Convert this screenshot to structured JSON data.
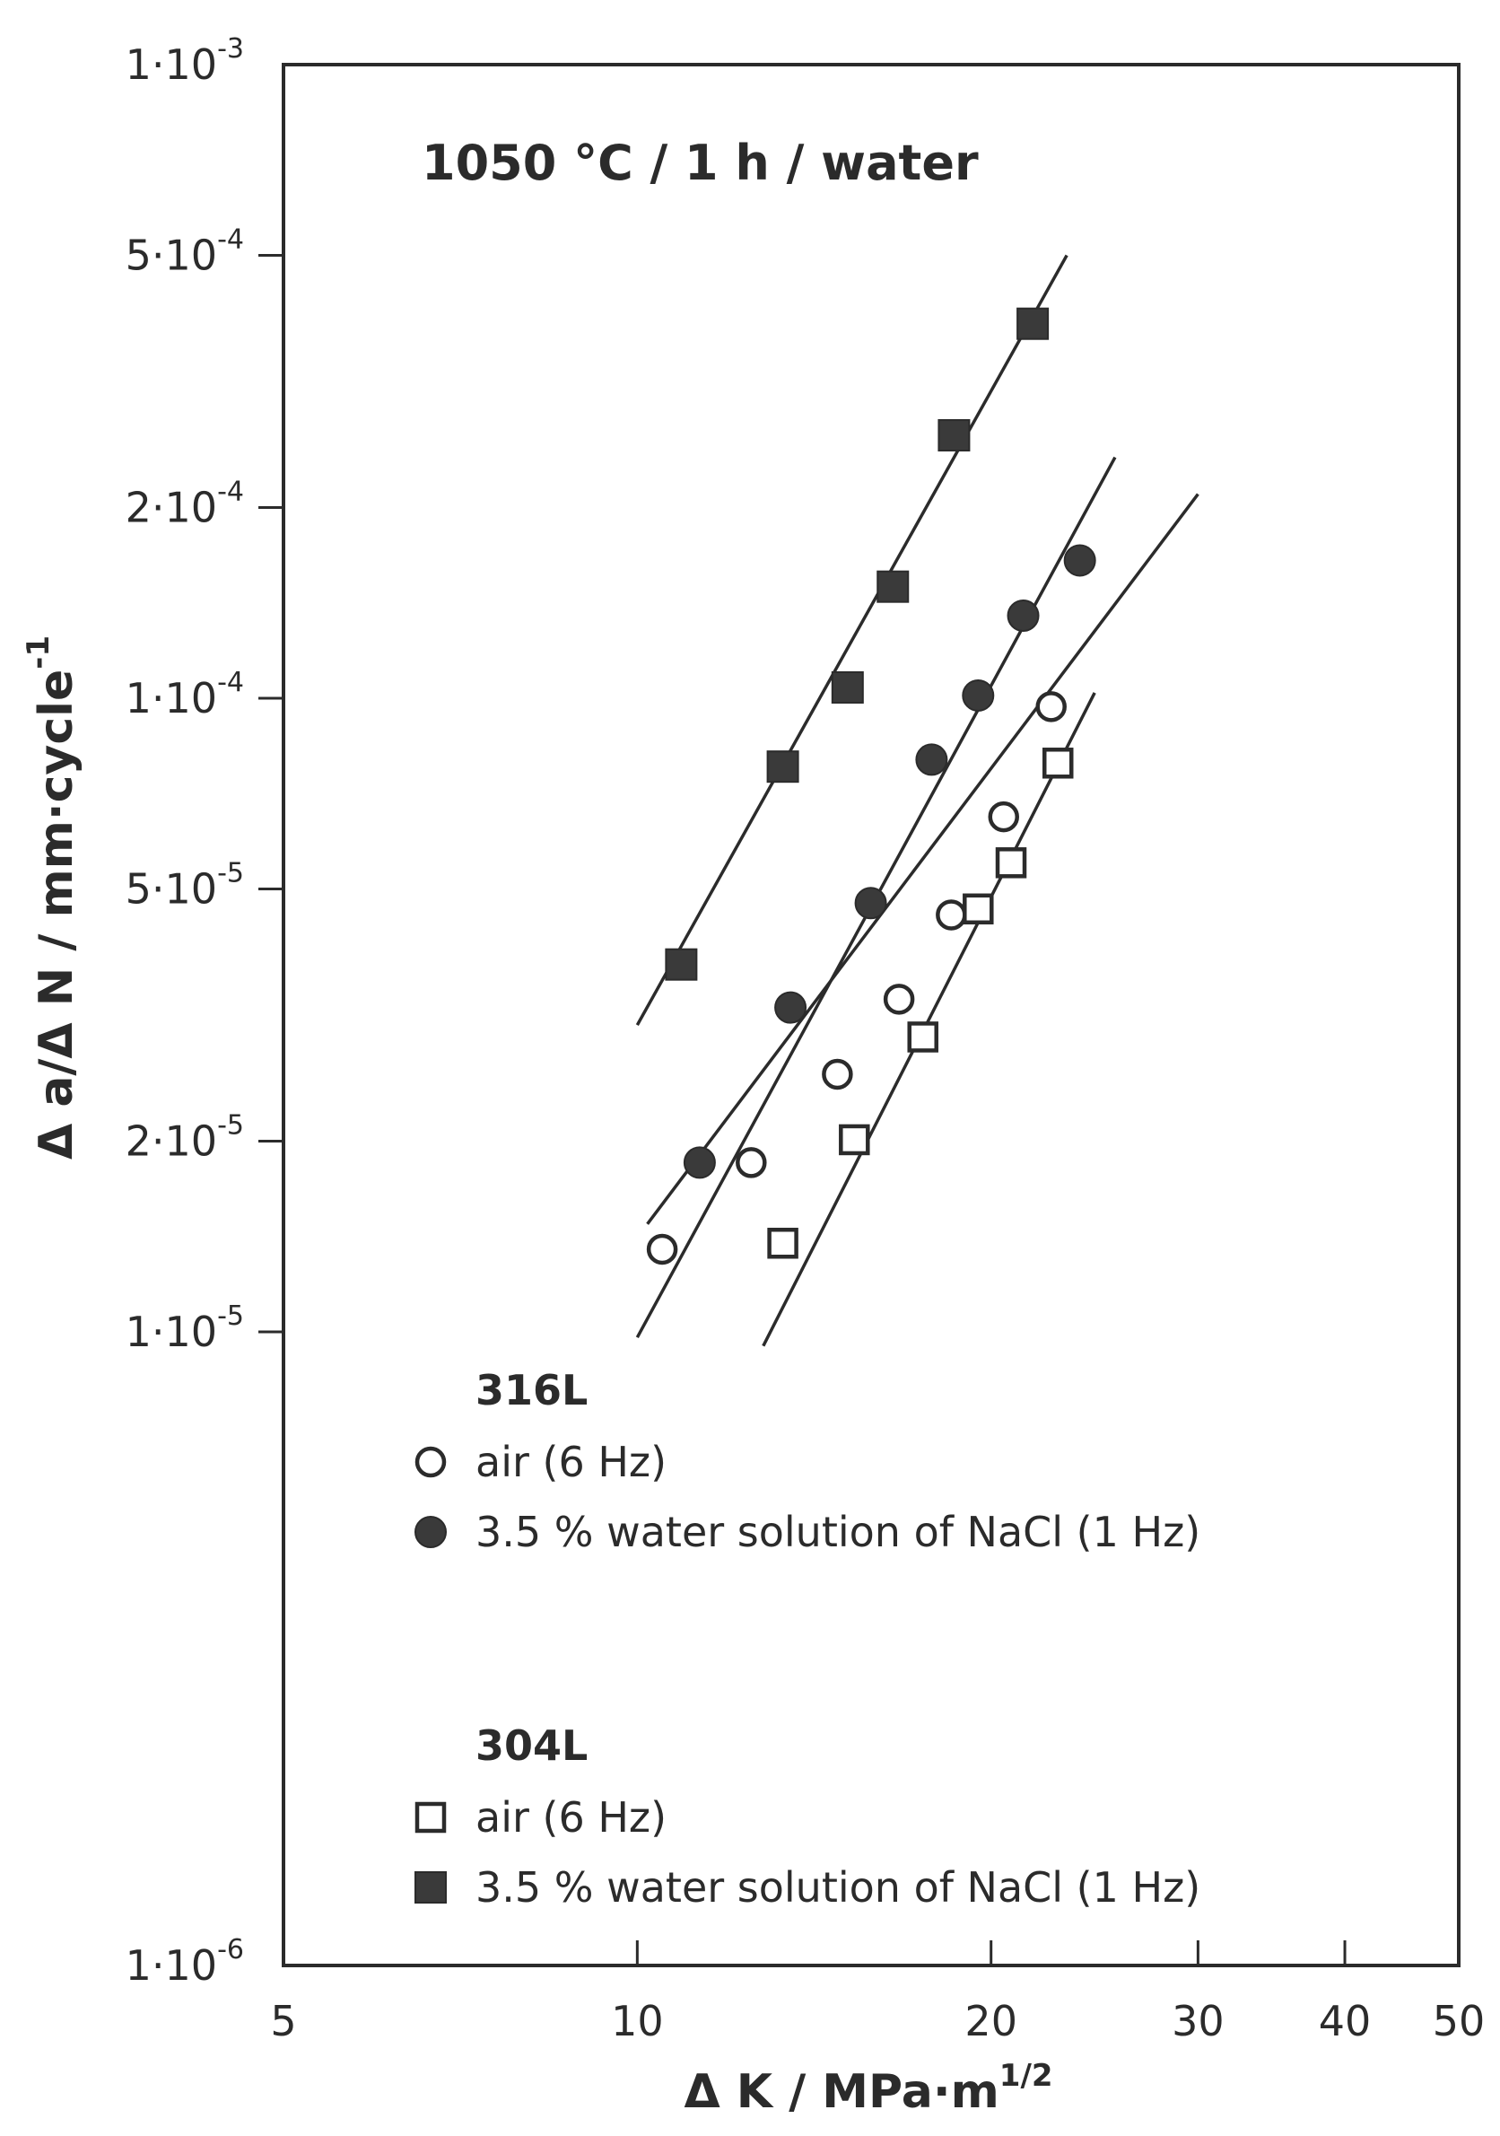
{
  "chart_data": {
    "type": "scatter",
    "title": "",
    "annotation": "1050 °C / 1 h / water",
    "xlabel": {
      "main": "Δ K / MPa·m",
      "exponent": "1/2"
    },
    "ylabel": {
      "main": "Δ a/Δ N / mm·cycle",
      "exponent": "-1"
    },
    "x_scale": "log",
    "y_scale": "log",
    "xlim": [
      5,
      50
    ],
    "ylim": [
      1e-06,
      0.001
    ],
    "grid": false,
    "x_ticks": [
      {
        "value": 5,
        "label": "5"
      },
      {
        "value": 10,
        "label": "10"
      },
      {
        "value": 20,
        "label": "20"
      },
      {
        "value": 30,
        "label": "30"
      },
      {
        "value": 40,
        "label": "40"
      },
      {
        "value": 50,
        "label": "50"
      }
    ],
    "y_ticks": [
      {
        "value": 1e-06,
        "mantissa": "1·10",
        "exponent": "-6"
      },
      {
        "value": 1e-05,
        "mantissa": "1·10",
        "exponent": "-5"
      },
      {
        "value": 2e-05,
        "mantissa": "2·10",
        "exponent": "-5"
      },
      {
        "value": 5e-05,
        "mantissa": "5·10",
        "exponent": "-5"
      },
      {
        "value": 0.0001,
        "mantissa": "1·10",
        "exponent": "-4"
      },
      {
        "value": 0.0002,
        "mantissa": "2·10",
        "exponent": "-4"
      },
      {
        "value": 0.0005,
        "mantissa": "5·10",
        "exponent": "-4"
      },
      {
        "value": 0.001,
        "mantissa": "1·10",
        "exponent": "-3"
      }
    ],
    "legend": {
      "placement": "lower-left inside plot",
      "groups": [
        {
          "heading": "316L",
          "entries": [
            {
              "series": 0,
              "label": "air (6 Hz)"
            },
            {
              "series": 1,
              "label": "3.5 % water solution of NaCl (1 Hz)"
            }
          ]
        },
        {
          "heading": "304L",
          "entries": [
            {
              "series": 2,
              "label": "air (6 Hz)"
            },
            {
              "series": 3,
              "label": "3.5 % water solution of NaCl (1 Hz)"
            }
          ]
        }
      ]
    },
    "series": [
      {
        "name": "316L air (6 Hz)",
        "marker": "open-circle",
        "points": [
          [
            10.5,
            1.35e-05
          ],
          [
            12.5,
            1.85e-05
          ],
          [
            14.8,
            2.55e-05
          ],
          [
            16.7,
            3.35e-05
          ],
          [
            18.5,
            4.55e-05
          ],
          [
            20.5,
            6.5e-05
          ],
          [
            22.5,
            9.7e-05
          ]
        ],
        "fit_line": [
          [
            10.2,
            1.48e-05
          ],
          [
            30,
            0.00021
          ]
        ]
      },
      {
        "name": "316L 3.5 % water solution of NaCl (1 Hz)",
        "marker": "filled-circle",
        "points": [
          [
            11.3,
            1.85e-05
          ],
          [
            13.5,
            3.25e-05
          ],
          [
            15.8,
            4.75e-05
          ],
          [
            17.8,
            8e-05
          ],
          [
            19.5,
            0.000101
          ],
          [
            21.3,
            0.000135
          ],
          [
            23.8,
            0.000165
          ]
        ],
        "fit_line": [
          [
            10.0,
            9.8e-06
          ],
          [
            25.5,
            0.00024
          ]
        ]
      },
      {
        "name": "304L air (6 Hz)",
        "marker": "open-square",
        "points": [
          [
            13.3,
            1.38e-05
          ],
          [
            15.3,
            2.01e-05
          ],
          [
            17.5,
            2.92e-05
          ],
          [
            19.5,
            4.65e-05
          ],
          [
            20.8,
            5.5e-05
          ],
          [
            22.8,
            7.9e-05
          ]
        ],
        "fit_line": [
          [
            12.8,
            9.5e-06
          ],
          [
            24.5,
            0.000102
          ]
        ]
      },
      {
        "name": "304L 3.5 % water solution of NaCl (1 Hz)",
        "marker": "filled-square",
        "points": [
          [
            10.9,
            3.8e-05
          ],
          [
            13.3,
            7.8e-05
          ],
          [
            15.1,
            0.000104
          ],
          [
            16.5,
            0.00015
          ],
          [
            18.6,
            0.00026
          ],
          [
            21.7,
            0.00039
          ]
        ],
        "fit_line": [
          [
            10.0,
            3.05e-05
          ],
          [
            23.2,
            0.0005
          ]
        ]
      }
    ]
  },
  "colors": {
    "ink": "#2b2b2b",
    "marker_fill": "#3a3a3a",
    "background": "#ffffff"
  }
}
